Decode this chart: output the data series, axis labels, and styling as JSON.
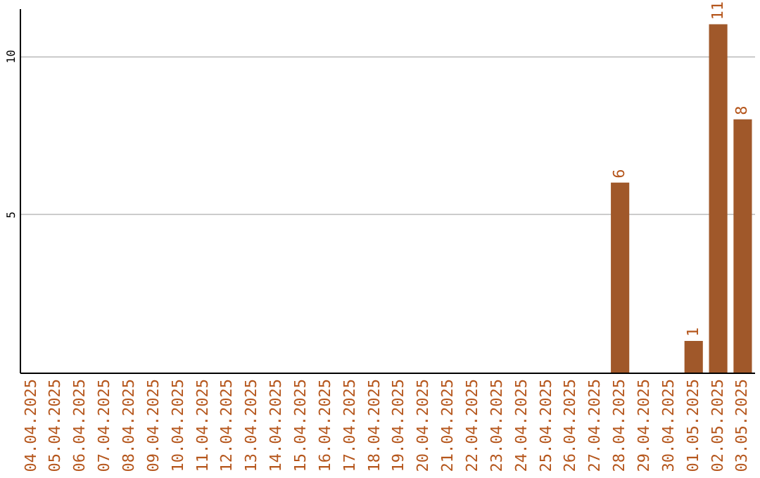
{
  "chart_data": {
    "type": "bar",
    "categories": [
      "04.04.2025",
      "05.04.2025",
      "06.04.2025",
      "07.04.2025",
      "08.04.2025",
      "09.04.2025",
      "10.04.2025",
      "11.04.2025",
      "12.04.2025",
      "13.04.2025",
      "14.04.2025",
      "15.04.2025",
      "16.04.2025",
      "17.04.2025",
      "18.04.2025",
      "19.04.2025",
      "20.04.2025",
      "21.04.2025",
      "22.04.2025",
      "23.04.2025",
      "24.04.2025",
      "25.04.2025",
      "26.04.2025",
      "27.04.2025",
      "28.04.2025",
      "29.04.2025",
      "30.04.2025",
      "01.05.2025",
      "02.05.2025",
      "03.05.2025"
    ],
    "values": [
      0,
      0,
      0,
      0,
      0,
      0,
      0,
      0,
      0,
      0,
      0,
      0,
      0,
      0,
      0,
      0,
      0,
      0,
      0,
      0,
      0,
      0,
      0,
      0,
      6,
      0,
      0,
      1,
      11,
      8
    ],
    "value_labels": [
      null,
      null,
      null,
      null,
      null,
      null,
      null,
      null,
      null,
      null,
      null,
      null,
      null,
      null,
      null,
      null,
      null,
      null,
      null,
      null,
      null,
      null,
      null,
      null,
      "6",
      null,
      null,
      "1",
      "11",
      "8"
    ],
    "color": "#a0582a",
    "ylim": [
      0,
      11.5
    ],
    "yticks": [
      5,
      10
    ],
    "grid": "y"
  }
}
